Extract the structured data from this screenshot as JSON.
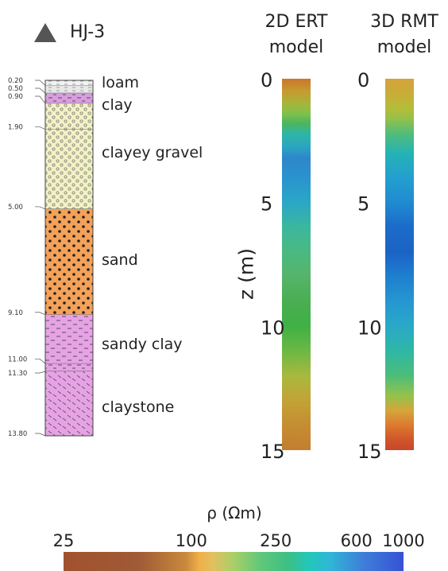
{
  "borehole": {
    "name": "HJ-3",
    "icon": "triangle-marker-icon",
    "layers": [
      {
        "top": 0.0,
        "bottom": 0.2,
        "label": "loam",
        "fill": "#f2f2f2",
        "pattern": "loam"
      },
      {
        "top": 0.2,
        "bottom": 0.5,
        "label": "",
        "fill": "#e8e8e8",
        "pattern": "loam"
      },
      {
        "top": 0.5,
        "bottom": 0.9,
        "label": "clay",
        "fill": "#d99de0",
        "pattern": "clay"
      },
      {
        "top": 0.9,
        "bottom": 1.9,
        "label": "",
        "fill": "#f3f2c4",
        "pattern": "gravel"
      },
      {
        "top": 1.9,
        "bottom": 5.0,
        "label": "clayey gravel",
        "fill": "#f3f2c4",
        "pattern": "gravel"
      },
      {
        "top": 5.0,
        "bottom": 9.1,
        "label": "sand",
        "fill": "#f4a259",
        "pattern": "sand"
      },
      {
        "top": 9.1,
        "bottom": 11.0,
        "label": "sandy clay",
        "fill": "#e7a2e6",
        "pattern": "sandyclay"
      },
      {
        "top": 11.0,
        "bottom": 11.3,
        "label": "",
        "fill": "#e7a2e6",
        "pattern": "clay"
      },
      {
        "top": 11.3,
        "bottom": 13.8,
        "label": "claystone",
        "fill": "#e7a2e6",
        "pattern": "claystone"
      }
    ],
    "depth_labels": [
      "0.20",
      "0.50",
      "0.90",
      "1.90",
      "5.00",
      "9.10",
      "11.00",
      "11.30",
      "13.80"
    ]
  },
  "models": [
    {
      "title_line1": "2D ERT",
      "title_line2": "model",
      "colors": [
        [
          0.0,
          "#c8772e"
        ],
        [
          0.5,
          "#c79a2f"
        ],
        [
          1.0,
          "#a5b53a"
        ],
        [
          1.4,
          "#7fc24a"
        ],
        [
          1.8,
          "#4cb55e"
        ],
        [
          2.2,
          "#2fb6a3"
        ],
        [
          2.8,
          "#2aa3c4"
        ],
        [
          3.2,
          "#2e86c9"
        ],
        [
          4.0,
          "#2a93cf"
        ],
        [
          5.0,
          "#2aa7c6"
        ],
        [
          6.0,
          "#3bb79e"
        ],
        [
          7.0,
          "#4bb980"
        ],
        [
          8.0,
          "#55b46a"
        ],
        [
          9.0,
          "#4aae52"
        ],
        [
          10.0,
          "#3fb144"
        ],
        [
          11.0,
          "#6cb845"
        ],
        [
          12.0,
          "#a8b93e"
        ],
        [
          13.0,
          "#c3a236"
        ],
        [
          14.0,
          "#c58d33"
        ],
        [
          15.0,
          "#c37e30"
        ]
      ]
    },
    {
      "title_line1": "3D RMT",
      "title_line2": "model",
      "colors": [
        [
          0.0,
          "#d4a23a"
        ],
        [
          0.8,
          "#c4b137"
        ],
        [
          1.2,
          "#b4bd3a"
        ],
        [
          1.6,
          "#96c04a"
        ],
        [
          2.2,
          "#52bd78"
        ],
        [
          3.0,
          "#25b3b4"
        ],
        [
          4.0,
          "#239fcf"
        ],
        [
          5.0,
          "#1f8bd0"
        ],
        [
          6.0,
          "#1c6bc9"
        ],
        [
          7.0,
          "#1a63c6"
        ],
        [
          8.0,
          "#1f7fcf"
        ],
        [
          9.0,
          "#2597d1"
        ],
        [
          10.0,
          "#2aa8c8"
        ],
        [
          11.0,
          "#2eb8a5"
        ],
        [
          12.0,
          "#4cbd78"
        ],
        [
          12.8,
          "#94c24a"
        ],
        [
          13.4,
          "#d4a63a"
        ],
        [
          14.0,
          "#dc7a2e"
        ],
        [
          14.6,
          "#d0542a"
        ],
        [
          15.0,
          "#c8472a"
        ]
      ]
    }
  ],
  "depth_axis": {
    "label": "z (m)",
    "ticks": [
      0,
      5,
      10,
      15
    ],
    "range": [
      0,
      15
    ]
  },
  "colorbar": {
    "label": "ρ (Ωm)",
    "tick_labels": [
      "25",
      "100",
      "250",
      "600",
      "1000"
    ],
    "tick_values": [
      25,
      100,
      250,
      600,
      1000
    ],
    "scale": "log",
    "range": [
      25,
      1000
    ],
    "stops": [
      [
        0.0,
        "#a0522d"
      ],
      [
        0.22,
        "#a05a36"
      ],
      [
        0.36,
        "#c9893e"
      ],
      [
        0.4,
        "#f0b04a"
      ],
      [
        0.44,
        "#e2c060"
      ],
      [
        0.5,
        "#a9cf68"
      ],
      [
        0.58,
        "#60c77a"
      ],
      [
        0.66,
        "#3dbf84"
      ],
      [
        0.72,
        "#22c7b9"
      ],
      [
        0.78,
        "#2fb8d6"
      ],
      [
        0.88,
        "#3f7fd8"
      ],
      [
        1.0,
        "#3552d6"
      ]
    ]
  }
}
